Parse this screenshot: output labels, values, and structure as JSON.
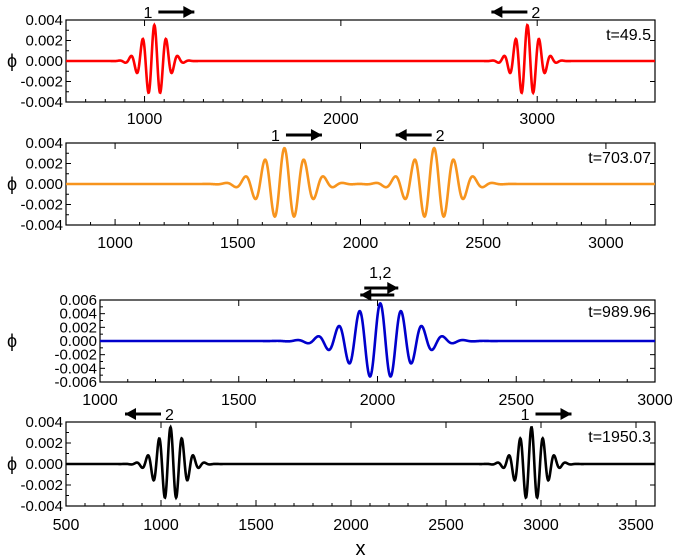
{
  "chart_data": [
    {
      "type": "line",
      "series": [
        {
          "color": "#ff0000",
          "center_x": [
            1050,
            2950
          ],
          "amplitude": 0.0035,
          "wavelength": 60,
          "envelope_width": 60
        }
      ],
      "time_label": "t=49.5",
      "ylabel": "ϕ",
      "xlim": [
        600,
        3600
      ],
      "ylim": [
        -0.004,
        0.004
      ],
      "xticks": [
        1000,
        2000,
        3000
      ],
      "yticks": [
        0.004,
        0.002,
        0.0,
        -0.002,
        -0.004
      ],
      "ytick_labels": [
        "0.004",
        "0.002",
        "0.000",
        "-0.002",
        "-0.004"
      ],
      "annotations": [
        {
          "text": "1",
          "x": 1050,
          "arrow": "right"
        },
        {
          "text": "2",
          "x": 2950,
          "arrow": "left"
        }
      ]
    },
    {
      "type": "line",
      "series": [
        {
          "color": "#f7941d",
          "center_x": [
            1690,
            2300
          ],
          "amplitude": 0.0035,
          "wavelength": 80,
          "envelope_width": 90
        }
      ],
      "time_label": "t=703.07",
      "ylabel": "ϕ",
      "xlim": [
        800,
        3200
      ],
      "ylim": [
        -0.004,
        0.004
      ],
      "xticks": [
        1000,
        1500,
        2000,
        2500,
        3000
      ],
      "yticks": [
        0.004,
        0.002,
        0.0,
        -0.002,
        -0.004
      ],
      "ytick_labels": [
        "0.004",
        "0.002",
        "0.000",
        "-0.002",
        "-0.004"
      ],
      "annotations": [
        {
          "text": "1",
          "x": 1680,
          "arrow": "right"
        },
        {
          "text": "2",
          "x": 2290,
          "arrow": "left"
        }
      ]
    },
    {
      "type": "line",
      "series": [
        {
          "color": "#0000cc",
          "center_x": [
            2010
          ],
          "amplitude": 0.0055,
          "wavelength": 75,
          "envelope_width": 110
        }
      ],
      "time_label": "t=989.96",
      "ylabel": "ϕ",
      "xlim": [
        1000,
        3000
      ],
      "ylim": [
        -0.006,
        0.006
      ],
      "xticks": [
        1000,
        1500,
        2000,
        2500,
        3000
      ],
      "yticks": [
        0.006,
        0.004,
        0.002,
        0.0,
        -0.002,
        -0.004,
        -0.006
      ],
      "ytick_labels": [
        "0.006",
        "0.004",
        "0.002",
        "0.000",
        "-0.002",
        "-0.004",
        "-0.006"
      ],
      "annotations": [
        {
          "text": "1,2",
          "x": 2010,
          "arrow": "both"
        }
      ]
    },
    {
      "type": "line",
      "series": [
        {
          "color": "#000000",
          "center_x": [
            1050,
            2950
          ],
          "amplitude": 0.0035,
          "wavelength": 60,
          "envelope_width": 70
        }
      ],
      "time_label": "t=1950.3",
      "ylabel": "ϕ",
      "xlabel": "x",
      "xlim": [
        500,
        3600
      ],
      "ylim": [
        -0.004,
        0.004
      ],
      "xticks": [
        500,
        1000,
        1500,
        2000,
        2500,
        3000,
        3500
      ],
      "yticks": [
        0.004,
        0.002,
        0.0,
        -0.002,
        -0.004
      ],
      "ytick_labels": [
        "0.004",
        "0.002",
        "0.000",
        "-0.002",
        "-0.004"
      ],
      "annotations": [
        {
          "text": "2",
          "x": 1000,
          "arrow": "left"
        },
        {
          "text": "1",
          "x": 2950,
          "arrow": "right"
        }
      ]
    }
  ]
}
